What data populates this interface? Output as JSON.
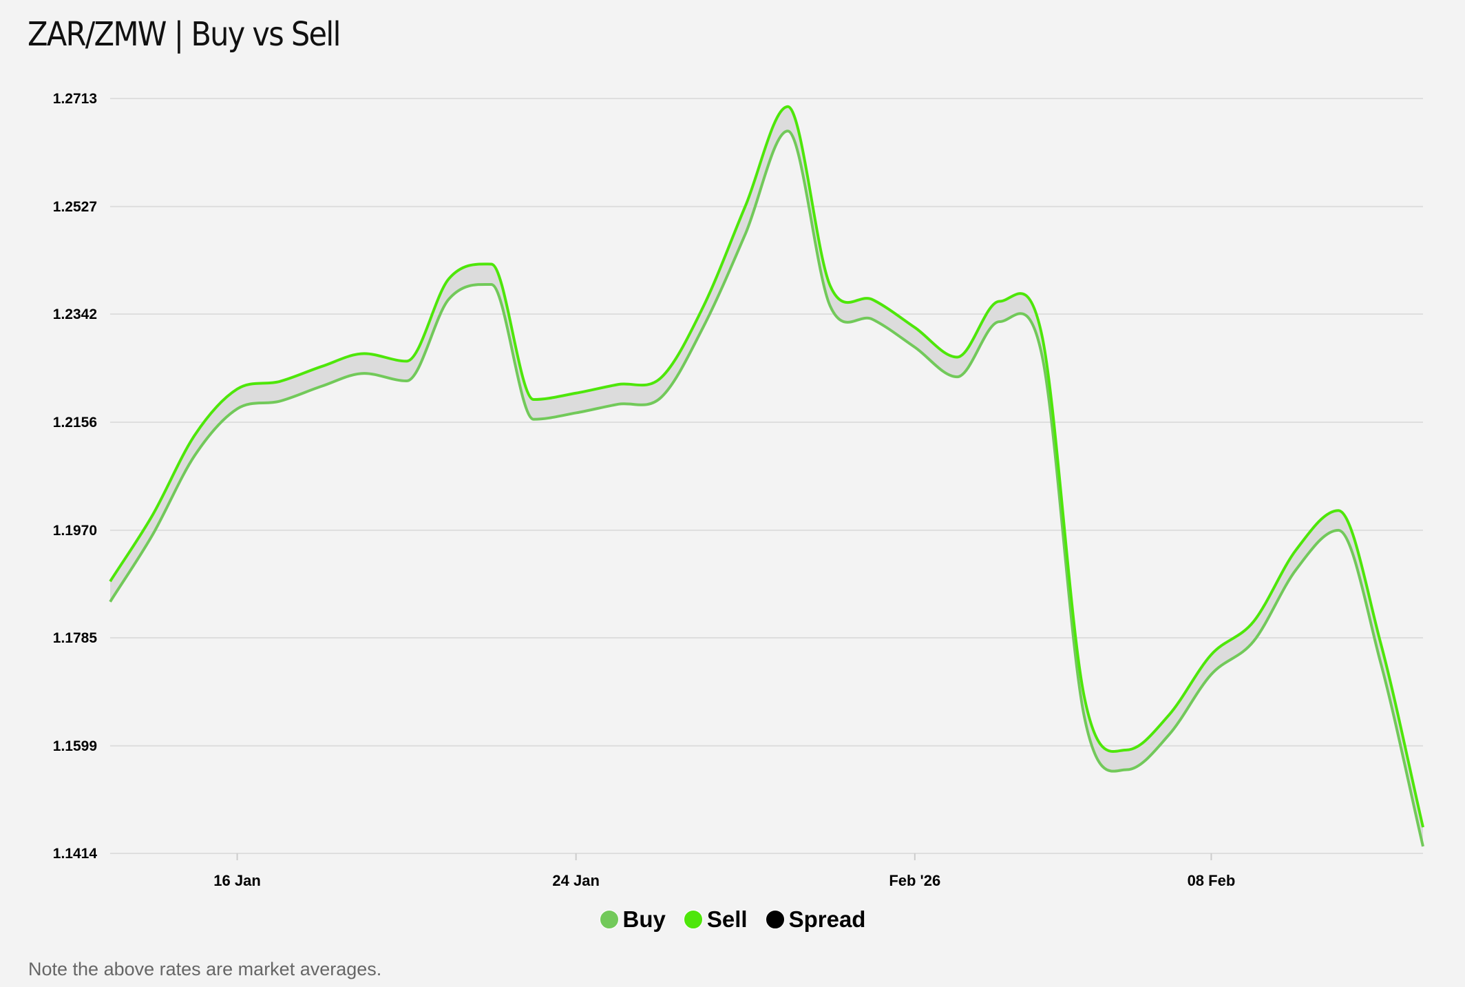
{
  "title": "ZAR/ZMW | Buy vs Sell",
  "note": "Note the above rates are market averages.",
  "colors": {
    "buy": "#72c95a",
    "sell": "#4ee60a",
    "spread": "#000000",
    "spread_fill": "#dcdcdc"
  },
  "legend": [
    {
      "label": "Buy",
      "color": "#72c95a"
    },
    {
      "label": "Sell",
      "color": "#4ee60a"
    },
    {
      "label": "Spread",
      "color": "#000000"
    }
  ],
  "chart_data": {
    "type": "line",
    "title": "ZAR/ZMW | Buy vs Sell",
    "xlabel": "",
    "ylabel": "",
    "ylim": [
      1.1414,
      1.2713
    ],
    "yticks": [
      "1.2713",
      "1.2527",
      "1.2342",
      "1.2156",
      "1.1970",
      "1.1785",
      "1.1599",
      "1.1414"
    ],
    "xticks": [
      {
        "label": "16 Jan",
        "day": 3
      },
      {
        "label": "24 Jan",
        "day": 11
      },
      {
        "label": "Feb '26",
        "day": 19
      },
      {
        "label": "08 Feb",
        "day": 26
      }
    ],
    "x_start": "13 Jan",
    "x_unit": "day",
    "grid": true,
    "legend_position": "bottom",
    "series": [
      {
        "name": "Sell",
        "values": [
          1.1882,
          1.1996,
          1.2134,
          1.2213,
          1.2226,
          1.2252,
          1.2274,
          1.2261,
          1.2403,
          1.2428,
          1.2195,
          1.2206,
          1.2221,
          1.2232,
          1.2354,
          1.2528,
          1.2699,
          1.2391,
          1.2367,
          1.2319,
          1.2268,
          1.2364,
          1.2306,
          1.1684,
          1.1592,
          1.1652,
          1.1756,
          1.1813,
          1.1936,
          1.2004,
          1.1776,
          1.1459
        ]
      },
      {
        "name": "Buy",
        "values": [
          1.1847,
          1.1962,
          1.2099,
          1.2179,
          1.2192,
          1.2218,
          1.224,
          1.2227,
          1.2368,
          1.2393,
          1.2161,
          1.2172,
          1.2187,
          1.2198,
          1.2319,
          1.248,
          1.2657,
          1.2356,
          1.2333,
          1.2285,
          1.2234,
          1.2329,
          1.2272,
          1.165,
          1.1558,
          1.1618,
          1.1722,
          1.1779,
          1.1902,
          1.197,
          1.1742,
          1.1426
        ]
      }
    ]
  }
}
